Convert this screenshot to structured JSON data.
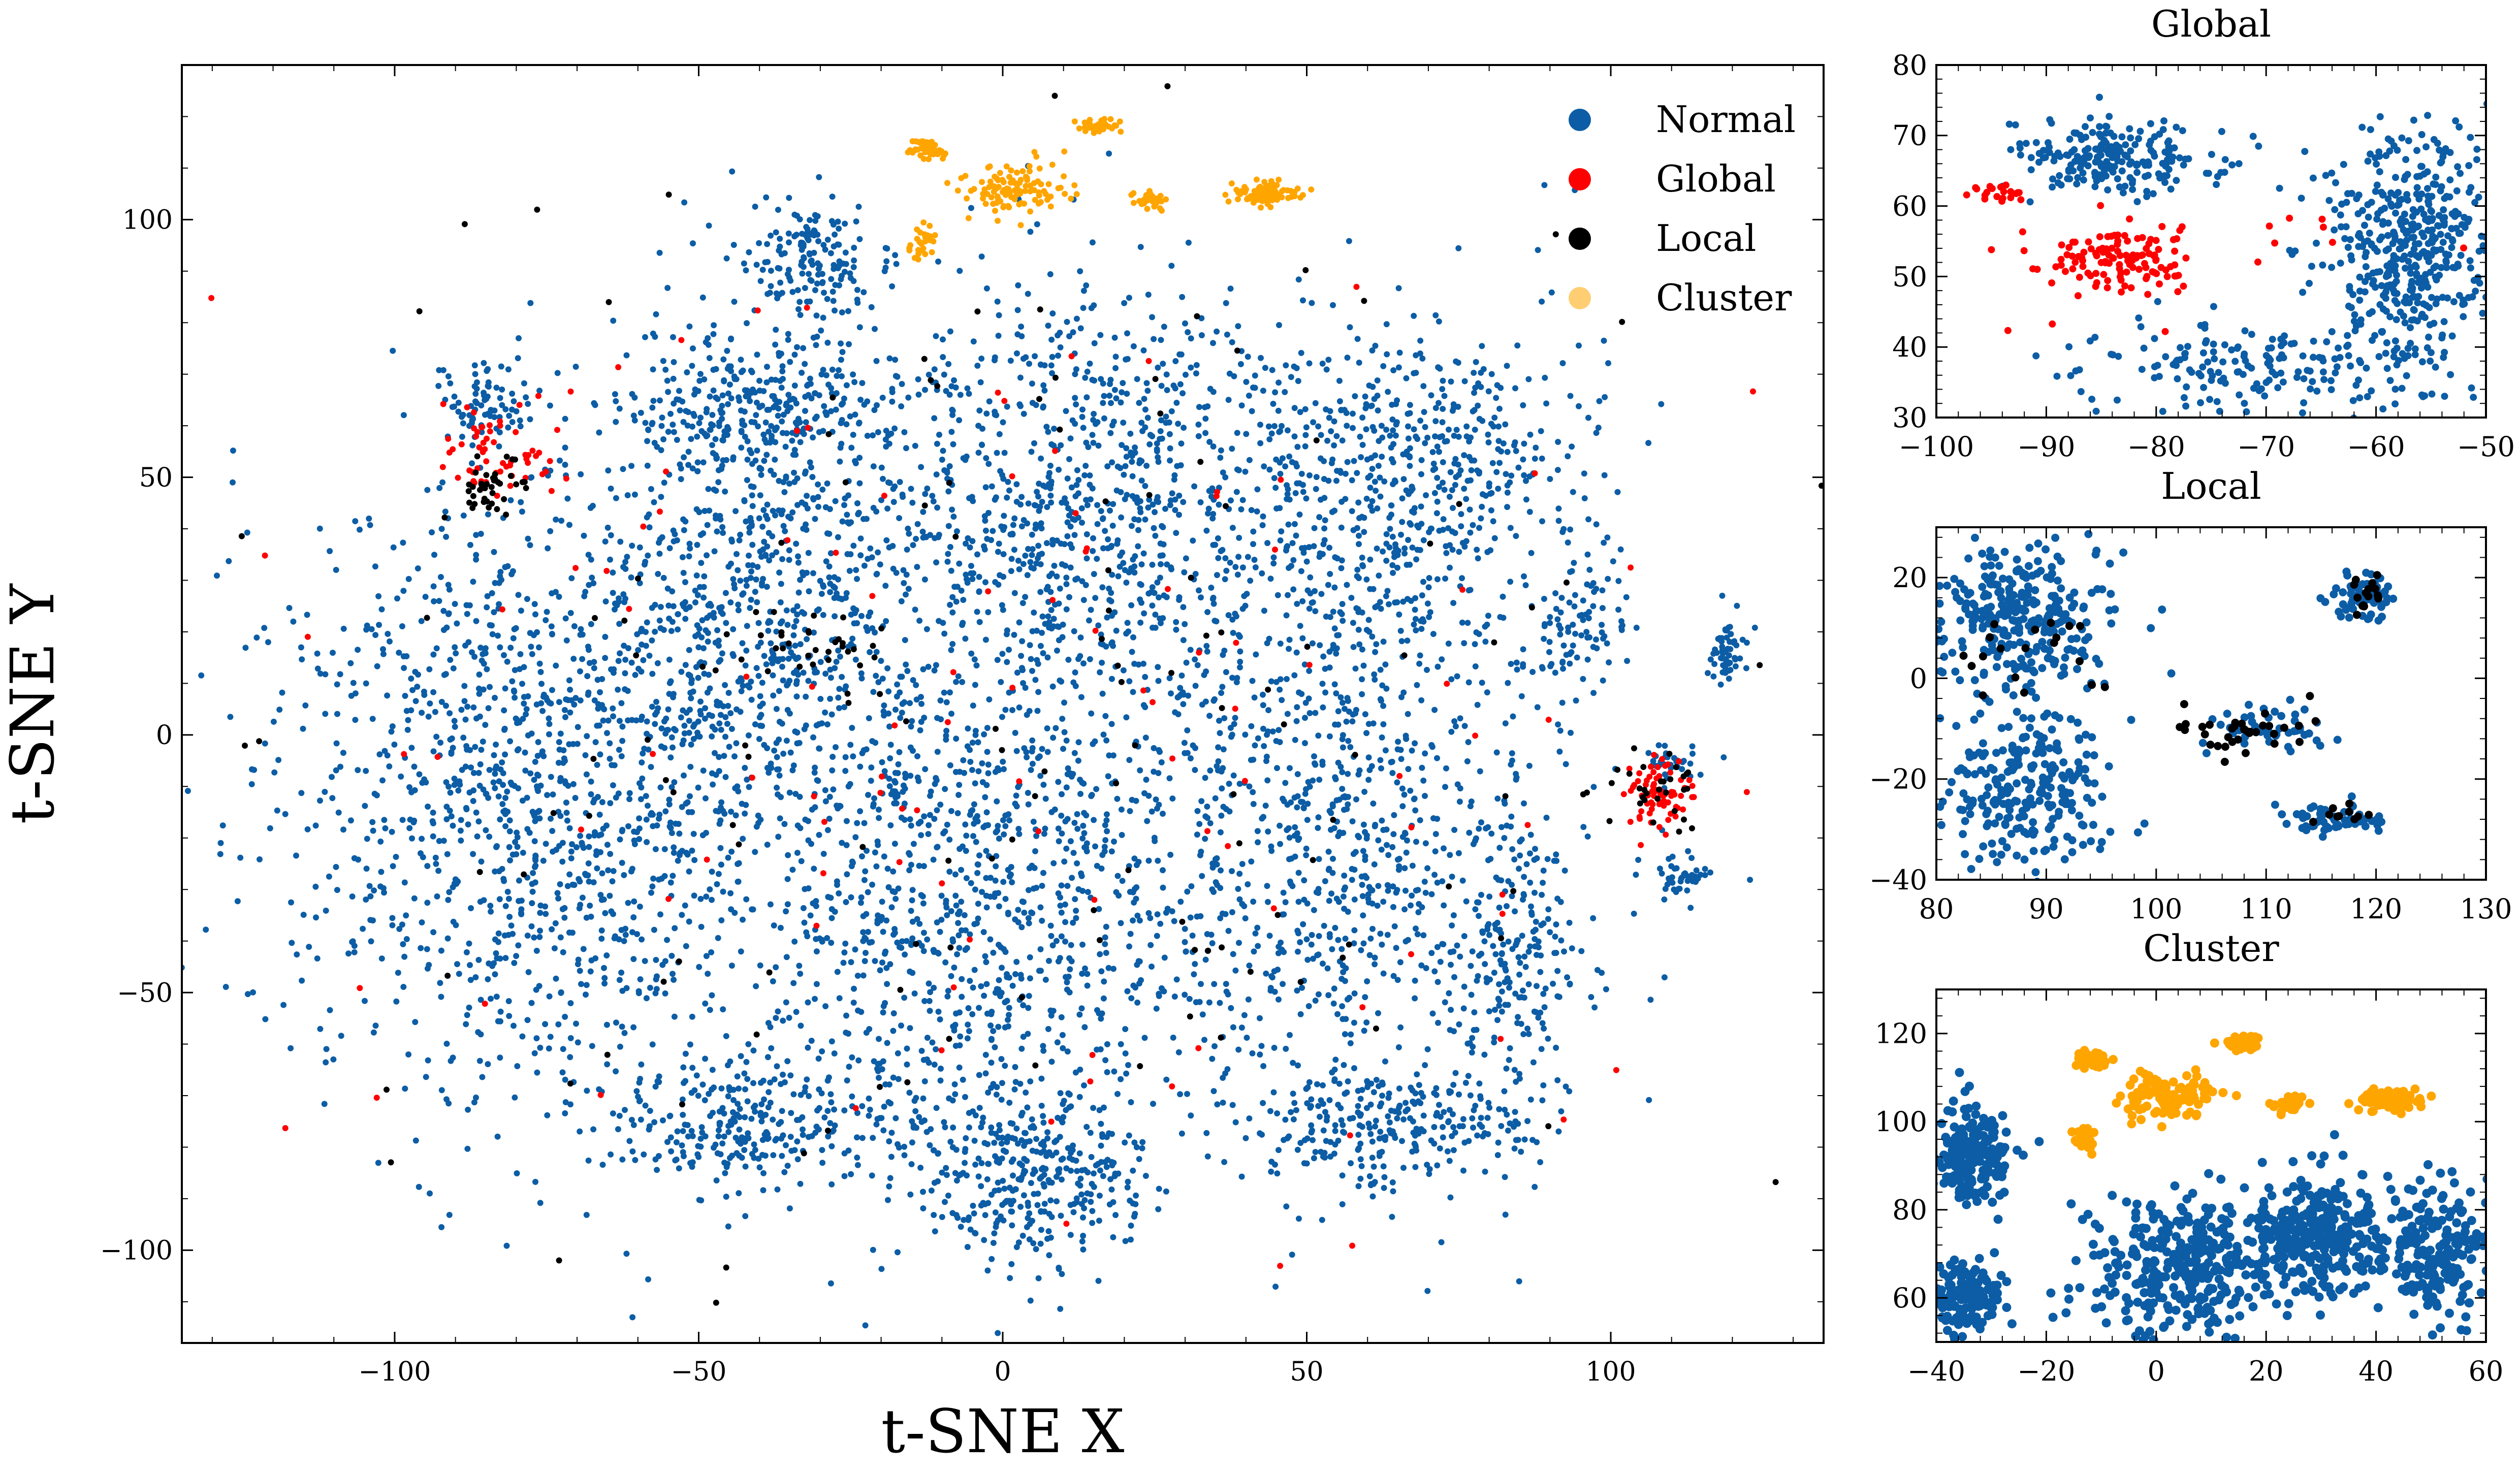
{
  "chart_data": [
    {
      "id": "main",
      "type": "scatter",
      "title": "",
      "xlabel": "t-SNE X",
      "ylabel": "t-SNE Y",
      "xlim": [
        -135,
        135
      ],
      "ylim": [
        -118,
        130
      ],
      "xticks": [
        -100,
        -50,
        0,
        50,
        100
      ],
      "yticks": [
        -100,
        -50,
        0,
        50,
        100
      ],
      "xtick_labels": [
        "−100",
        "−50",
        "0",
        "50",
        "100"
      ],
      "ytick_labels": [
        "−100",
        "−50",
        "0",
        "50",
        "100"
      ],
      "legend": {
        "placement": "top-right",
        "entries": [
          {
            "label": "Normal",
            "color": "#0C5DA5"
          },
          {
            "label": "Global",
            "color": "#FF0000"
          },
          {
            "label": "Local",
            "color": "#000000"
          },
          {
            "label": "Cluster",
            "color": "#FFA500"
          }
        ]
      },
      "series": [
        {
          "name": "Normal",
          "color": "#0C5DA5",
          "regions": [
            {
              "cx": -75,
              "cy": -10,
              "rx": 42,
              "ry": 58,
              "n": 1400
            },
            {
              "cx": -40,
              "cy": 30,
              "rx": 22,
              "ry": 45,
              "n": 600
            },
            {
              "cx": -5,
              "cy": -30,
              "rx": 30,
              "ry": 45,
              "n": 900
            },
            {
              "cx": 15,
              "cy": 45,
              "rx": 40,
              "ry": 38,
              "n": 1000
            },
            {
              "cx": 55,
              "cy": -20,
              "rx": 35,
              "ry": 55,
              "n": 1000
            },
            {
              "cx": 70,
              "cy": 50,
              "rx": 25,
              "ry": 30,
              "n": 500
            },
            {
              "cx": 5,
              "cy": -85,
              "rx": 18,
              "ry": 15,
              "n": 350
            },
            {
              "cx": -40,
              "cy": -75,
              "rx": 25,
              "ry": 12,
              "n": 300
            },
            {
              "cx": 65,
              "cy": -75,
              "rx": 20,
              "ry": 10,
              "n": 250
            },
            {
              "cx": -40,
              "cy": 65,
              "rx": 20,
              "ry": 12,
              "n": 250
            },
            {
              "cx": -32,
              "cy": 93,
              "rx": 10,
              "ry": 10,
              "n": 150
            },
            {
              "cx": -85,
              "cy": 65,
              "rx": 7,
              "ry": 7,
              "n": 80
            },
            {
              "cx": 119,
              "cy": 16,
              "rx": 2.5,
              "ry": 6,
              "n": 60
            },
            {
              "cx": 112,
              "cy": -27,
              "rx": 4,
              "ry": 4,
              "n": 40
            },
            {
              "cx": 95,
              "cy": 20,
              "rx": 7,
              "ry": 10,
              "n": 80
            },
            {
              "cx": 85,
              "cy": -40,
              "rx": 8,
              "ry": 25,
              "n": 150
            },
            {
              "cx": 110,
              "cy": -5,
              "rx": 6,
              "ry": 3,
              "n": 30
            }
          ]
        },
        {
          "name": "Global",
          "color": "#FF0000",
          "regions": [
            {
              "cx": -83,
              "cy": 55,
              "rx": 8,
              "ry": 10,
              "n": 60
            },
            {
              "cx": 108,
              "cy": -12,
              "rx": 5,
              "ry": 6,
              "n": 70
            },
            {
              "cx": 0,
              "cy": 0,
              "rx": 110,
              "ry": 95,
              "n": 120
            }
          ]
        },
        {
          "name": "Local",
          "color": "#000000",
          "regions": [
            {
              "cx": -85,
              "cy": 48,
              "rx": 6,
              "ry": 5,
              "n": 40
            },
            {
              "cx": 108,
              "cy": -12,
              "rx": 6,
              "ry": 8,
              "n": 30
            },
            {
              "cx": -30,
              "cy": 18,
              "rx": 15,
              "ry": 6,
              "n": 30
            },
            {
              "cx": 0,
              "cy": 0,
              "rx": 110,
              "ry": 95,
              "n": 150
            }
          ]
        },
        {
          "name": "Cluster",
          "color": "#FFA500",
          "regions": [
            {
              "cx": -12,
              "cy": 114,
              "rx": 3,
              "ry": 2,
              "n": 50
            },
            {
              "cx": 2,
              "cy": 106,
              "rx": 8,
              "ry": 5,
              "n": 110
            },
            {
              "cx": 16,
              "cy": 118,
              "rx": 3,
              "ry": 1.5,
              "n": 40
            },
            {
              "cx": 24,
              "cy": 104,
              "rx": 2.5,
              "ry": 2,
              "n": 30
            },
            {
              "cx": 43,
              "cy": 105,
              "rx": 5,
              "ry": 2,
              "n": 90
            },
            {
              "cx": -13,
              "cy": 96,
              "rx": 2,
              "ry": 3,
              "n": 30
            }
          ]
        }
      ]
    },
    {
      "id": "global",
      "type": "scatter",
      "title": "Global",
      "xlabel": "",
      "ylabel": "",
      "xlim": [
        -100,
        -50
      ],
      "ylim": [
        30,
        80
      ],
      "xticks": [
        -100,
        -90,
        -80,
        -70,
        -60,
        -50
      ],
      "yticks": [
        30,
        40,
        50,
        60,
        70,
        80
      ],
      "xtick_labels": [
        "−100",
        "−90",
        "−80",
        "−70",
        "−60",
        "−50"
      ],
      "ytick_labels": [
        "30",
        "40",
        "50",
        "60",
        "70",
        "80"
      ],
      "series": [
        {
          "name": "Normal",
          "color": "#0C5DA5",
          "regions": [
            {
              "cx": -84,
              "cy": 67,
              "rx": 8,
              "ry": 5,
              "n": 220
            },
            {
              "cx": -57,
              "cy": 55,
              "rx": 7,
              "ry": 15,
              "n": 450
            },
            {
              "cx": -70,
              "cy": 37,
              "rx": 15,
              "ry": 6,
              "n": 180
            }
          ]
        },
        {
          "name": "Global",
          "color": "#FF0000",
          "regions": [
            {
              "cx": -84,
              "cy": 52,
              "rx": 6,
              "ry": 4,
              "n": 120
            },
            {
              "cx": -94,
              "cy": 62,
              "rx": 2,
              "ry": 1.5,
              "n": 20
            },
            {
              "cx": -75,
              "cy": 55,
              "rx": 20,
              "ry": 15,
              "n": 15
            }
          ]
        }
      ]
    },
    {
      "id": "local",
      "type": "scatter",
      "title": "Local",
      "xlabel": "",
      "ylabel": "",
      "xlim": [
        80,
        130
      ],
      "ylim": [
        -40,
        30
      ],
      "xticks": [
        80,
        90,
        100,
        110,
        120,
        130
      ],
      "yticks": [
        -40,
        -20,
        0,
        20
      ],
      "xtick_labels": [
        "80",
        "90",
        "100",
        "110",
        "120",
        "130"
      ],
      "ytick_labels": [
        "−40",
        "−20",
        "0",
        "20"
      ],
      "series": [
        {
          "name": "Normal",
          "color": "#0C5DA5",
          "regions": [
            {
              "cx": 88,
              "cy": 12,
              "rx": 8,
              "ry": 14,
              "n": 300
            },
            {
              "cx": 88,
              "cy": -22,
              "rx": 8,
              "ry": 14,
              "n": 250
            },
            {
              "cx": 119,
              "cy": 16,
              "rx": 2.5,
              "ry": 4,
              "n": 70
            },
            {
              "cx": 110,
              "cy": -10,
              "rx": 5,
              "ry": 4,
              "n": 50
            },
            {
              "cx": 116,
              "cy": -28,
              "rx": 4,
              "ry": 3,
              "n": 60
            }
          ]
        },
        {
          "name": "Local",
          "color": "#000000",
          "regions": [
            {
              "cx": 108,
              "cy": -10,
              "rx": 7,
              "ry": 5,
              "n": 35
            },
            {
              "cx": 88,
              "cy": 5,
              "rx": 7,
              "ry": 8,
              "n": 20
            },
            {
              "cx": 119,
              "cy": 17,
              "rx": 2,
              "ry": 3,
              "n": 15
            },
            {
              "cx": 117,
              "cy": -27,
              "rx": 3,
              "ry": 2,
              "n": 10
            }
          ]
        }
      ]
    },
    {
      "id": "cluster",
      "type": "scatter",
      "title": "Cluster",
      "xlabel": "",
      "ylabel": "",
      "xlim": [
        -40,
        60
      ],
      "ylim": [
        50,
        130
      ],
      "xticks": [
        -40,
        -20,
        0,
        20,
        40,
        60
      ],
      "yticks": [
        60,
        80,
        100,
        120
      ],
      "xtick_labels": [
        "−40",
        "−20",
        "0",
        "20",
        "40",
        "60"
      ],
      "ytick_labels": [
        "60",
        "80",
        "100",
        "120"
      ],
      "series": [
        {
          "name": "Normal",
          "color": "#0C5DA5",
          "regions": [
            {
              "cx": -33,
              "cy": 93,
              "rx": 6,
              "ry": 10,
              "n": 200
            },
            {
              "cx": -35,
              "cy": 60,
              "rx": 6,
              "ry": 8,
              "n": 150
            },
            {
              "cx": 5,
              "cy": 66,
              "rx": 18,
              "ry": 14,
              "n": 350
            },
            {
              "cx": 30,
              "cy": 75,
              "rx": 12,
              "ry": 12,
              "n": 300
            },
            {
              "cx": 52,
              "cy": 70,
              "rx": 9,
              "ry": 14,
              "n": 200
            }
          ]
        },
        {
          "name": "Cluster",
          "color": "#FFA500",
          "regions": [
            {
              "cx": -12,
              "cy": 114,
              "rx": 3,
              "ry": 2,
              "n": 50
            },
            {
              "cx": 2,
              "cy": 106,
              "rx": 8,
              "ry": 5,
              "n": 110
            },
            {
              "cx": 16,
              "cy": 118,
              "rx": 3,
              "ry": 1.5,
              "n": 40
            },
            {
              "cx": 24,
              "cy": 104,
              "rx": 2.5,
              "ry": 2,
              "n": 30
            },
            {
              "cx": 43,
              "cy": 105,
              "rx": 5,
              "ry": 2,
              "n": 90
            },
            {
              "cx": -13,
              "cy": 96,
              "rx": 2,
              "ry": 3,
              "n": 30
            }
          ]
        }
      ]
    }
  ]
}
